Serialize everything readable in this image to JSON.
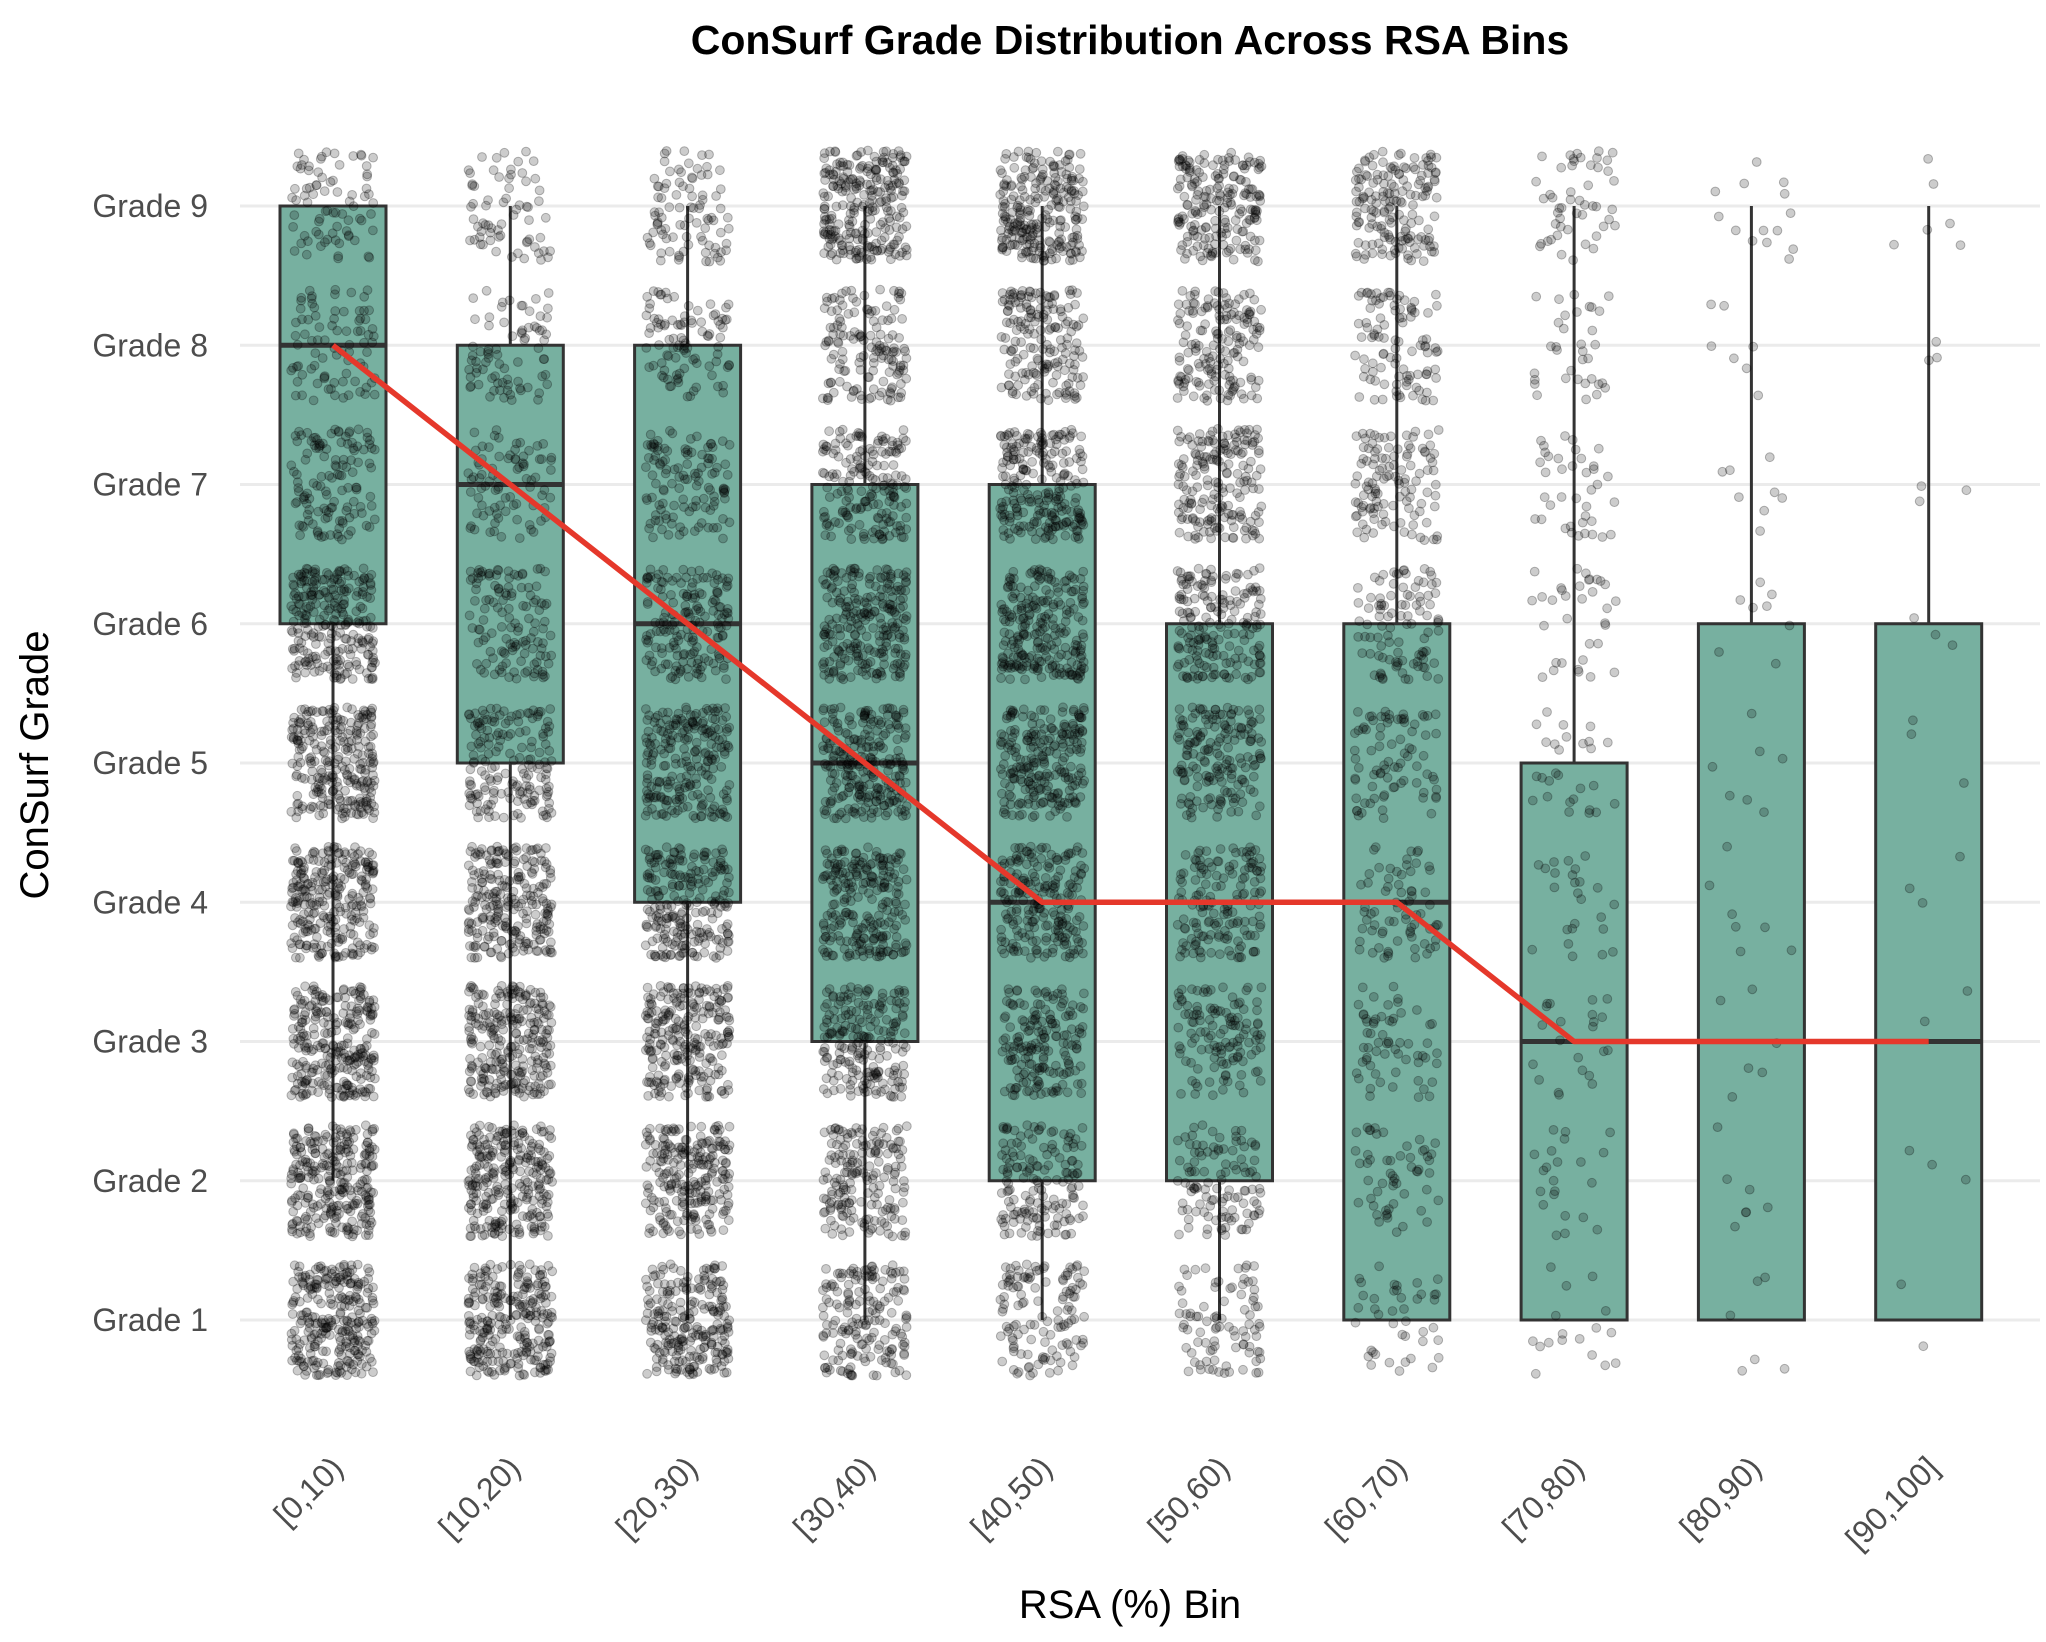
{
  "chart_data": {
    "type": "box",
    "title": "ConSurf Grade Distribution Across RSA Bins",
    "xlabel": "RSA (%) Bin",
    "ylabel": "ConSurf Grade",
    "y_tick_labels": [
      "Grade 1",
      "Grade 2",
      "Grade 3",
      "Grade 4",
      "Grade 5",
      "Grade 6",
      "Grade 7",
      "Grade 8",
      "Grade 9"
    ],
    "ylim": [
      0.5,
      9.5
    ],
    "grid": true,
    "categories": [
      "[0,10)",
      "[10,20)",
      "[20,30)",
      "[30,40)",
      "[40,50)",
      "[50,60)",
      "[60,70)",
      "[70,80)",
      "[80,90)",
      "[90,100]"
    ],
    "boxes": [
      {
        "whisker_low": 2,
        "q1": 6,
        "median": 8,
        "q3": 9,
        "whisker_high": 9
      },
      {
        "whisker_low": 1,
        "q1": 5,
        "median": 7,
        "q3": 8,
        "whisker_high": 9
      },
      {
        "whisker_low": 1,
        "q1": 4,
        "median": 6,
        "q3": 8,
        "whisker_high": 9
      },
      {
        "whisker_low": 1,
        "q1": 3,
        "median": 5,
        "q3": 7,
        "whisker_high": 9
      },
      {
        "whisker_low": 1,
        "q1": 2,
        "median": 4,
        "q3": 7,
        "whisker_high": 9
      },
      {
        "whisker_low": 1,
        "q1": 2,
        "median": 4,
        "q3": 6,
        "whisker_high": 9
      },
      {
        "whisker_low": 1,
        "q1": 1,
        "median": 4,
        "q3": 6,
        "whisker_high": 9
      },
      {
        "whisker_low": 1,
        "q1": 1,
        "median": 3,
        "q3": 5,
        "whisker_high": 9
      },
      {
        "whisker_low": 1,
        "q1": 1,
        "median": 3,
        "q3": 6,
        "whisker_high": 9
      },
      {
        "whisker_low": 1,
        "q1": 1,
        "median": 3,
        "q3": 6,
        "whisker_high": 9
      }
    ],
    "median_line": [
      8,
      7,
      6,
      5,
      4,
      4,
      4,
      3,
      3,
      3
    ],
    "jitter_point_density": [
      [
        0.98,
        0.96,
        0.95,
        0.95,
        0.94,
        0.9,
        0.45,
        0.3,
        0.28
      ],
      [
        0.92,
        0.94,
        0.93,
        0.86,
        0.6,
        0.45,
        0.3,
        0.28,
        0.24
      ],
      [
        0.85,
        0.82,
        0.86,
        0.82,
        0.8,
        0.62,
        0.42,
        0.35,
        0.32
      ],
      [
        0.62,
        0.65,
        0.72,
        0.82,
        0.88,
        0.86,
        0.64,
        0.52,
        0.9
      ],
      [
        0.45,
        0.55,
        0.62,
        0.75,
        0.82,
        0.86,
        0.82,
        0.62,
        0.88
      ],
      [
        0.32,
        0.4,
        0.45,
        0.55,
        0.62,
        0.66,
        0.66,
        0.58,
        0.7
      ],
      [
        0.15,
        0.2,
        0.22,
        0.26,
        0.3,
        0.36,
        0.42,
        0.36,
        0.58
      ],
      [
        0.06,
        0.08,
        0.08,
        0.09,
        0.1,
        0.12,
        0.14,
        0.12,
        0.18
      ],
      [
        0.02,
        0.025,
        0.02,
        0.025,
        0.025,
        0.03,
        0.03,
        0.025,
        0.05
      ],
      [
        0.008,
        0.01,
        0.008,
        0.01,
        0.01,
        0.012,
        0.012,
        0.01,
        0.02
      ]
    ],
    "colors": {
      "box_fill": "#77b0a0",
      "box_stroke": "#333333",
      "median_line": "#e5382b",
      "points": "#000000",
      "grid": "#ebebeb"
    }
  }
}
